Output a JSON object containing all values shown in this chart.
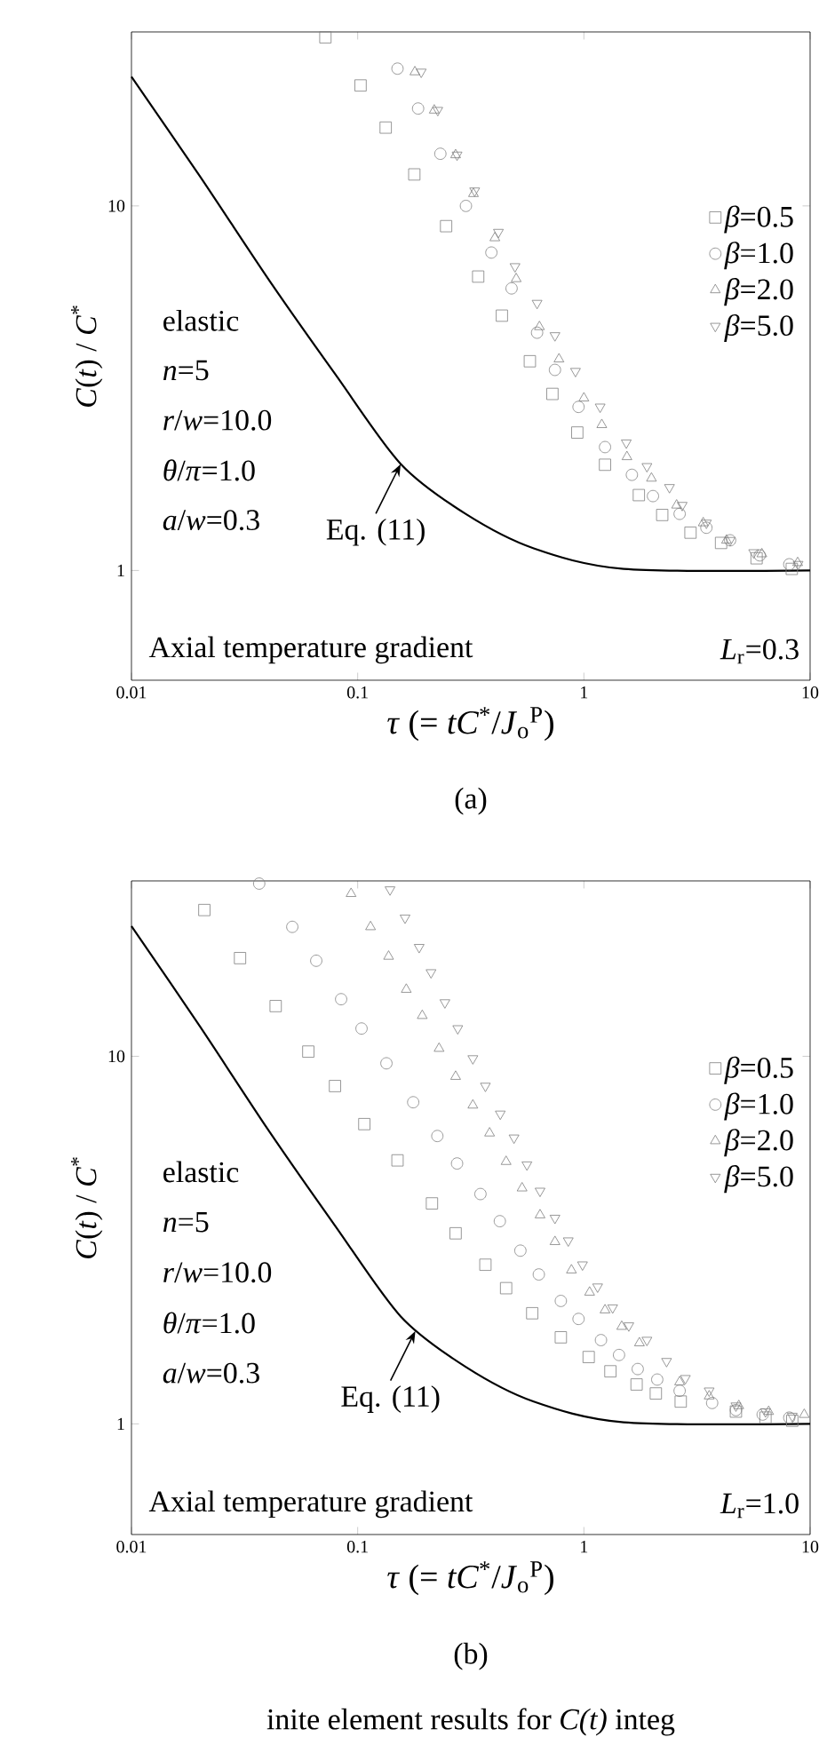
{
  "chart_data": [
    {
      "type": "scatter",
      "xlabel": "*τ* (= *tC*$^{*}$/*J*$_{o}$$^{P}$)",
      "ylabel": "*C*(*t*) / *C*$^{*}$",
      "log": "xy",
      "xlim": [
        0.01,
        10
      ],
      "ylim": [
        0.5,
        30
      ],
      "xticks": [
        0.01,
        0.1,
        1,
        10
      ],
      "yticks": [
        1,
        10
      ],
      "legend": "right",
      "annotations": [
        "elastic",
        "*n*=5",
        "*r*/*w*=10.0",
        "*θ*/*π*=1.0",
        "*a*/*w*=0.3",
        {
          "text": "Eq. (11)",
          "x": 0.155,
          "y": 1.96
        },
        "Axial temperature gradient",
        "*L*$_{r}$=0.3",
        "(a)"
      ],
      "series": [
        {
          "type": "line",
          "marker": "none",
          "color": "#000000",
          "x": [
            0.01,
            0.02,
            0.041,
            0.08,
            0.155,
            0.3,
            0.6,
            1.5,
            10
          ],
          "values": [
            22.6,
            12.1,
            6.2,
            3.44,
            1.96,
            1.43,
            1.15,
            1.01,
            1.0
          ]
        },
        {
          "name": "*β*=0.5",
          "marker": "square",
          "color": "#7f7f7f",
          "x": [
            0.072,
            0.103,
            0.133,
            0.178,
            0.246,
            0.341,
            0.434,
            0.577,
            0.726,
            0.935,
            1.24,
            1.75,
            2.22,
            2.96,
            4.04,
            5.8,
            8.3
          ],
          "values": [
            29,
            21.4,
            16.4,
            12.2,
            8.8,
            6.4,
            5.0,
            3.75,
            3.05,
            2.39,
            1.95,
            1.61,
            1.42,
            1.27,
            1.19,
            1.08,
            1.01
          ]
        },
        {
          "name": "*β*=1.0",
          "marker": "circle",
          "color": "#7f7f7f",
          "x": [
            0.15,
            0.185,
            0.232,
            0.301,
            0.39,
            0.479,
            0.621,
            0.745,
            0.947,
            1.24,
            1.63,
            2.02,
            2.65,
            3.48,
            4.43,
            5.99,
            8.09
          ],
          "values": [
            23.8,
            18.5,
            13.9,
            10.0,
            7.45,
            5.94,
            4.49,
            3.55,
            2.81,
            2.18,
            1.83,
            1.6,
            1.43,
            1.31,
            1.21,
            1.1,
            1.04
          ]
        },
        {
          "name": "*β*=2.0",
          "marker": "triangle",
          "color": "#7f7f7f",
          "x": [
            0.179,
            0.218,
            0.271,
            0.325,
            0.404,
            0.502,
            0.636,
            0.776,
            1.0,
            1.2,
            1.55,
            1.99,
            2.57,
            3.37,
            4.27,
            6.12,
            8.81
          ],
          "values": [
            23.3,
            18.3,
            13.8,
            10.8,
            8.17,
            6.31,
            4.66,
            3.8,
            2.97,
            2.51,
            2.05,
            1.79,
            1.51,
            1.35,
            1.21,
            1.11,
            1.05
          ]
        },
        {
          "name": "*β*=5.0",
          "marker": "triangle-down",
          "color": "#7f7f7f",
          "x": [
            0.191,
            0.226,
            0.275,
            0.329,
            0.419,
            0.496,
            0.621,
            0.745,
            0.918,
            1.18,
            1.54,
            1.9,
            2.39,
            2.72,
            3.48,
            4.43,
            5.63,
            8.85
          ],
          "values": [
            23.3,
            18.3,
            13.8,
            11.0,
            8.47,
            6.82,
            5.41,
            4.41,
            3.52,
            2.81,
            2.24,
            1.93,
            1.69,
            1.51,
            1.35,
            1.21,
            1.12,
            1.04
          ]
        }
      ]
    },
    {
      "type": "scatter",
      "xlabel": "*τ* (= *tC*$^{*}$/*J*$_{o}$$^{P}$)",
      "ylabel": "*C*(*t*) / *C*$^{*}$",
      "log": "xy",
      "xlim": [
        0.01,
        10
      ],
      "ylim": [
        0.5,
        30
      ],
      "xticks": [
        0.01,
        0.1,
        1,
        10
      ],
      "yticks": [
        1,
        10
      ],
      "legend": "right",
      "annotations": [
        "elastic",
        "*n*=5",
        "*r*/*w*=10.0",
        "*θ*/*π*=1.0",
        "*a*/*w*=0.3",
        {
          "text": "Eq. (11)",
          "x": 0.18,
          "y": 1.79
        },
        "Axial temperature gradient",
        "*L*$_{r}$=1.0",
        "(b)",
        "inite element results for *C(t)* integ"
      ],
      "series": [
        {
          "type": "line",
          "marker": "none",
          "color": "#000000",
          "x": [
            0.01,
            0.02,
            0.041,
            0.08,
            0.155,
            0.3,
            0.6,
            1.5,
            10
          ],
          "values": [
            22.6,
            12.1,
            6.2,
            3.44,
            1.96,
            1.43,
            1.15,
            1.01,
            1.0
          ]
        },
        {
          "name": "*β*=0.5",
          "marker": "square",
          "color": "#7f7f7f",
          "x": [
            0.021,
            0.0302,
            0.0434,
            0.0605,
            0.0794,
            0.107,
            0.15,
            0.213,
            0.271,
            0.367,
            0.453,
            0.591,
            0.791,
            1.05,
            1.31,
            1.71,
            2.08,
            2.68,
            4.7,
            6.35,
            8.34
          ],
          "values": [
            25.0,
            18.5,
            13.7,
            10.3,
            8.3,
            6.54,
            5.21,
            3.98,
            3.3,
            2.71,
            2.34,
            2.0,
            1.72,
            1.52,
            1.39,
            1.28,
            1.21,
            1.15,
            1.08,
            1.04,
            1.02
          ]
        },
        {
          "name": "*β*=1.0",
          "marker": "circle",
          "color": "#7f7f7f",
          "x": [
            0.0367,
            0.0514,
            0.0656,
            0.0845,
            0.104,
            0.134,
            0.176,
            0.225,
            0.275,
            0.349,
            0.425,
            0.524,
            0.632,
            0.791,
            0.947,
            1.19,
            1.43,
            1.73,
            2.11,
            2.65,
            3.69,
            4.7,
            6.17,
            8.09
          ],
          "values": [
            29.5,
            22.5,
            18.2,
            14.3,
            11.9,
            9.57,
            7.5,
            6.07,
            5.11,
            4.22,
            3.56,
            2.96,
            2.55,
            2.16,
            1.93,
            1.69,
            1.54,
            1.41,
            1.32,
            1.23,
            1.14,
            1.09,
            1.06,
            1.04
          ]
        },
        {
          "name": "*β*=2.0",
          "marker": "triangle",
          "color": "#7f7f7f",
          "x": [
            0.0935,
            0.114,
            0.137,
            0.164,
            0.193,
            0.229,
            0.271,
            0.323,
            0.383,
            0.453,
            0.533,
            0.64,
            0.745,
            0.881,
            1.06,
            1.24,
            1.47,
            1.76,
            2.65,
            3.58,
            4.84,
            6.56,
            9.42
          ],
          "values": [
            27.7,
            22.5,
            18.7,
            15.2,
            12.9,
            10.5,
            8.81,
            7.36,
            6.18,
            5.17,
            4.38,
            3.7,
            3.13,
            2.62,
            2.28,
            2.04,
            1.84,
            1.66,
            1.3,
            1.19,
            1.12,
            1.08,
            1.06
          ]
        },
        {
          "name": "*β*=5.0",
          "marker": "triangle-down",
          "color": "#7f7f7f",
          "x": [
            0.139,
            0.162,
            0.187,
            0.211,
            0.243,
            0.277,
            0.323,
            0.367,
            0.427,
            0.491,
            0.56,
            0.64,
            0.745,
            0.853,
            0.986,
            1.15,
            1.34,
            1.58,
            1.9,
            2.32,
            2.81,
            3.58,
            4.7,
            6.35,
            8.34
          ],
          "values": [
            28.4,
            23.8,
            19.8,
            16.9,
            14.0,
            11.9,
            9.86,
            8.3,
            6.97,
            6.0,
            5.07,
            4.3,
            3.63,
            3.15,
            2.71,
            2.36,
            2.07,
            1.85,
            1.69,
            1.48,
            1.33,
            1.23,
            1.12,
            1.08,
            1.05
          ]
        }
      ]
    }
  ]
}
